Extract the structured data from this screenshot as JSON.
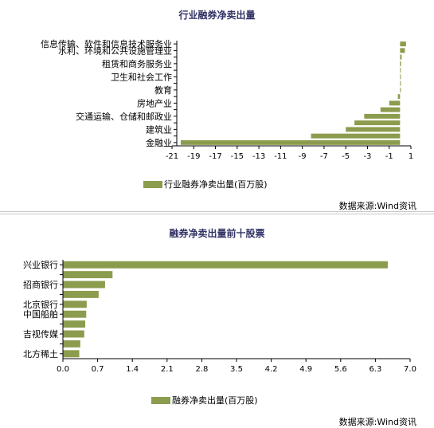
{
  "chart_data": [
    {
      "type": "bar",
      "orientation": "horizontal",
      "title": "行业融券净卖出量",
      "categories": [
        "信息传输、软件和信息技术服务业",
        "水利、环境和公共设施管理业",
        "",
        "租赁和商务服务业",
        "",
        "卫生和社会工作",
        "",
        "教育",
        "",
        "房地产业",
        "",
        "交通运输、仓储和邮政业",
        "",
        "建筑业",
        "",
        "金融业"
      ],
      "series": [
        {
          "name": "行业融券净卖出量(百万股)",
          "values": [
            0.55,
            0.45,
            0.15,
            0.1,
            0.05,
            0.05,
            0.05,
            0.05,
            -0.2,
            -1.0,
            -1.8,
            -3.3,
            -4.2,
            -5.0,
            -8.2,
            -20.2
          ]
        }
      ],
      "xlim": [
        -21,
        1
      ],
      "xticks": [
        "-21",
        "-19",
        "-17",
        "-15",
        "-13",
        "-11",
        "-9",
        "-7",
        "-5",
        "-3",
        "-1",
        "1"
      ],
      "color": "#8c9c4e",
      "legend_position": "bottom-center",
      "source": "数据来源:Wind资讯"
    },
    {
      "type": "bar",
      "orientation": "horizontal",
      "title": "融券净卖出量前十股票",
      "categories": [
        "兴业银行",
        "",
        "招商银行",
        "",
        "北京银行",
        "中国船舶",
        "",
        "吉视传媒",
        "",
        "北方稀土"
      ],
      "series": [
        {
          "name": "融券净卖出量(百万股)",
          "values": [
            6.55,
            1.0,
            0.85,
            0.72,
            0.48,
            0.47,
            0.45,
            0.43,
            0.35,
            0.33
          ]
        }
      ],
      "xlim": [
        0,
        7
      ],
      "xticks": [
        "0.0",
        "0.7",
        "1.4",
        "2.1",
        "2.8",
        "3.5",
        "4.2",
        "4.9",
        "5.6",
        "6.3",
        "7.0"
      ],
      "color": "#8c9c4e",
      "legend_position": "bottom-center",
      "source": "数据来源:Wind资讯"
    }
  ]
}
